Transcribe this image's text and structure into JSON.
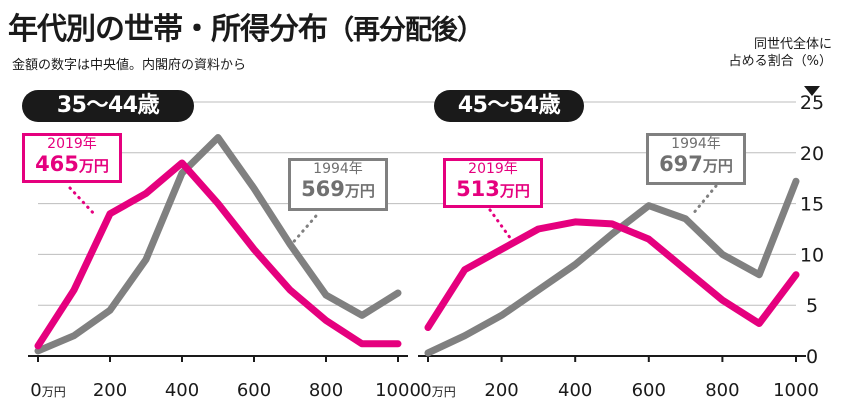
{
  "title": "年代別の世帯・所得分布",
  "title_paren": "（再分配後）",
  "subtitle": "金額の数字は中央値。内閣府の資料から",
  "yaxis_title": [
    "同世代全体に",
    "占める割合（%）"
  ],
  "colors": {
    "series_2019": "#e5007e",
    "series_1994": "#808080",
    "grid": "#bdbdbd",
    "tag_bg": "#1a1a1a"
  },
  "chart_data": [
    {
      "type": "line",
      "title": "35〜44歳",
      "x": [
        0,
        100,
        200,
        300,
        400,
        500,
        600,
        700,
        800,
        900,
        1000
      ],
      "x_ticks": [
        "0万円",
        "200",
        "400",
        "600",
        "800",
        "1000"
      ],
      "ylim": [
        0,
        25
      ],
      "y_ticks": [
        "0",
        "5",
        "10",
        "15",
        "20",
        "25"
      ],
      "grid": true,
      "series": [
        {
          "name": "1994年",
          "values": [
            0.5,
            2.0,
            4.5,
            9.5,
            18.0,
            21.5,
            16.5,
            11.0,
            6.0,
            4.0,
            6.2
          ]
        },
        {
          "name": "2019年",
          "values": [
            1.0,
            6.5,
            14.0,
            16.0,
            19.0,
            15.0,
            10.5,
            6.5,
            3.5,
            1.2,
            1.2
          ]
        }
      ],
      "annotations": [
        {
          "series": "2019年",
          "year": "2019年",
          "value": "465",
          "unit": "万円"
        },
        {
          "series": "1994年",
          "year": "1994年",
          "value": "569",
          "unit": "万円"
        }
      ]
    },
    {
      "type": "line",
      "title": "45〜54歳",
      "x": [
        0,
        100,
        200,
        300,
        400,
        500,
        600,
        700,
        800,
        900,
        1000
      ],
      "x_ticks": [
        "0万円",
        "200",
        "400",
        "600",
        "800",
        "1000"
      ],
      "ylim": [
        0,
        25
      ],
      "y_ticks": [
        "0",
        "5",
        "10",
        "15",
        "20",
        "25"
      ],
      "grid": true,
      "series": [
        {
          "name": "1994年",
          "values": [
            0.3,
            2.0,
            4.0,
            6.5,
            9.0,
            12.0,
            14.8,
            13.5,
            10.0,
            8.0,
            17.2
          ]
        },
        {
          "name": "2019年",
          "values": [
            2.8,
            8.5,
            10.5,
            12.5,
            13.2,
            13.0,
            11.5,
            8.5,
            5.5,
            3.2,
            8.0
          ]
        }
      ],
      "annotations": [
        {
          "series": "2019年",
          "year": "2019年",
          "value": "513",
          "unit": "万円"
        },
        {
          "series": "1994年",
          "year": "1994年",
          "value": "697",
          "unit": "万円"
        }
      ]
    }
  ]
}
